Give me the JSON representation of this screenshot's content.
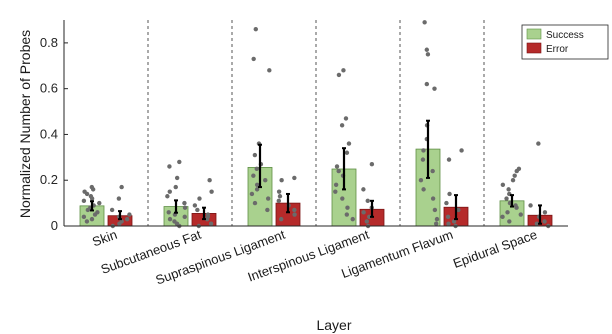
{
  "chart_data": {
    "type": "bar",
    "xlabel": "Layer",
    "ylabel": "Normalized Number of Probes",
    "ylim": [
      0,
      0.9
    ],
    "yticks": [
      "0",
      "0.2",
      "0.4",
      "0.6",
      "0.8"
    ],
    "ytick_values": [
      0,
      0.2,
      0.4,
      0.6,
      0.8
    ],
    "categories": [
      "Skin",
      "Subcutaneous Fat",
      "Supraspinous Ligament",
      "Interspinous Ligament",
      "Ligamentum Flavum",
      "Epidural Space"
    ],
    "legend_position": "top-right",
    "grid": false,
    "series": [
      {
        "name": "Success",
        "color": "#a9d18e",
        "edge_color": "#5f8f45",
        "values": [
          0.088,
          0.085,
          0.256,
          0.249,
          0.336,
          0.11
        ],
        "error": [
          [
            0.068,
            0.108
          ],
          [
            0.058,
            0.112
          ],
          [
            0.17,
            0.355
          ],
          [
            0.16,
            0.34
          ],
          [
            0.21,
            0.46
          ],
          [
            0.085,
            0.135
          ]
        ],
        "points": [
          [
            0.17,
            0.16,
            0.15,
            0.14,
            0.13,
            0.12,
            0.11,
            0.1,
            0.09,
            0.08,
            0.07,
            0.06,
            0.05,
            0.04,
            0.03,
            0.02
          ],
          [
            0.28,
            0.26,
            0.21,
            0.17,
            0.15,
            0.13,
            0.1,
            0.08,
            0.06,
            0.05,
            0.04,
            0.03,
            0.02,
            0.01,
            0.0
          ],
          [
            0.86,
            0.73,
            0.68,
            0.36,
            0.31,
            0.27,
            0.25,
            0.22,
            0.2,
            0.18,
            0.16,
            0.14,
            0.12,
            0.1,
            0.07
          ],
          [
            0.68,
            0.66,
            0.47,
            0.44,
            0.36,
            0.32,
            0.26,
            0.24,
            0.22,
            0.18,
            0.15,
            0.12,
            0.08,
            0.05,
            0.03
          ],
          [
            0.89,
            0.77,
            0.75,
            0.62,
            0.6,
            0.44,
            0.38,
            0.33,
            0.29,
            0.24,
            0.2,
            0.16,
            0.12,
            0.07,
            0.03,
            0.01
          ],
          [
            0.25,
            0.24,
            0.22,
            0.2,
            0.18,
            0.16,
            0.14,
            0.12,
            0.1,
            0.09,
            0.08,
            0.06,
            0.05,
            0.04,
            0.02
          ]
        ]
      },
      {
        "name": "Error",
        "color": "#b52a2a",
        "edge_color": "#7a1515",
        "values": [
          0.045,
          0.055,
          0.1,
          0.073,
          0.082,
          0.047
        ],
        "error": [
          [
            0.03,
            0.065
          ],
          [
            0.03,
            0.08
          ],
          [
            0.06,
            0.14
          ],
          [
            0.04,
            0.11
          ],
          [
            0.03,
            0.135
          ],
          [
            0.01,
            0.09
          ]
        ],
        "points": [
          [
            0.17,
            0.12,
            0.07,
            0.05,
            0.04,
            0.03,
            0.02,
            0.01,
            0.0
          ],
          [
            0.2,
            0.15,
            0.12,
            0.09,
            0.07,
            0.05,
            0.04,
            0.03,
            0.01,
            0.0
          ],
          [
            0.21,
            0.2,
            0.15,
            0.13,
            0.11,
            0.09,
            0.07,
            0.05,
            0.03
          ],
          [
            0.27,
            0.16,
            0.11,
            0.08,
            0.06,
            0.04,
            0.02,
            0.0
          ],
          [
            0.33,
            0.29,
            0.14,
            0.1,
            0.07,
            0.04,
            0.02,
            0.01,
            0.0
          ],
          [
            0.36,
            0.09,
            0.06,
            0.04,
            0.02,
            0.01,
            0.0
          ]
        ]
      }
    ]
  }
}
